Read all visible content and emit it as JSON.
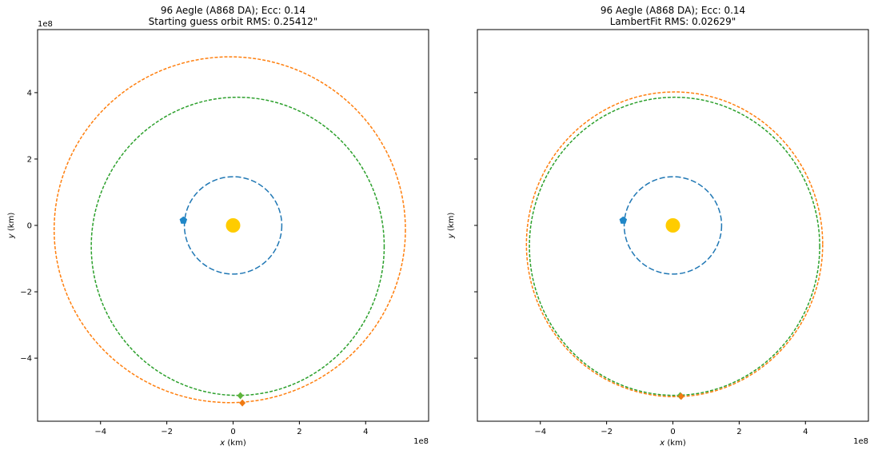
{
  "chart_data": [
    {
      "type": "scatter",
      "title": [
        "96 Aegle (A868 DA); Ecc: 0.14",
        "Starting guess orbit RMS: 0.25412\""
      ],
      "xlabel": "x (km)",
      "ylabel": "y (km)",
      "xlabel_var": "x",
      "ylabel_var": "y",
      "xlabel_unit": " (km)",
      "ylabel_unit": " (km)",
      "x_offset_label": "1e8",
      "y_offset_label": "1e8",
      "xlim": [
        -5.9,
        5.9
      ],
      "ylim": [
        -5.9,
        5.9
      ],
      "xticks": [
        -4,
        -2,
        0,
        2,
        4
      ],
      "yticks": [
        -4,
        -2,
        0,
        2,
        4
      ],
      "show_ytick_labels": true,
      "grid": false,
      "sun": {
        "x": 0,
        "y": 0,
        "color": "#ffcc00"
      },
      "orbits": [
        {
          "color": "#1f77b4",
          "cx": 0,
          "cy": 0,
          "rx": 1.47,
          "ry": 1.47,
          "dash": "long"
        },
        {
          "color": "#ff7f0e",
          "cx": -0.1,
          "cy": -0.13,
          "rx": 5.3,
          "ry": 5.22,
          "dash": "short"
        },
        {
          "color": "#2ca02c",
          "cx": 0.14,
          "cy": -0.63,
          "rx": 4.42,
          "ry": 4.5,
          "dash": "short"
        }
      ],
      "markers": [
        {
          "color": "#1f87c8",
          "x": -1.5,
          "y": 0.15,
          "shape": "pentagon"
        },
        {
          "color": "#5fb43c",
          "x": 0.22,
          "y": -5.13,
          "shape": "diamond"
        },
        {
          "color": "#f07a12",
          "x": 0.28,
          "y": -5.35,
          "shape": "diamond"
        }
      ]
    },
    {
      "type": "scatter",
      "title": [
        "96 Aegle (A868 DA); Ecc: 0.14",
        "LambertFit RMS: 0.02629\""
      ],
      "xlabel": "x (km)",
      "ylabel": "y (km)",
      "xlabel_var": "x",
      "ylabel_var": "y",
      "xlabel_unit": " (km)",
      "ylabel_unit": " (km)",
      "x_offset_label": "1e8",
      "y_offset_label": "",
      "xlim": [
        -5.9,
        5.9
      ],
      "ylim": [
        -5.9,
        5.9
      ],
      "xticks": [
        -4,
        -2,
        0,
        2,
        4
      ],
      "yticks": [
        -4,
        -2,
        0,
        2,
        4
      ],
      "show_ytick_labels": false,
      "grid": false,
      "sun": {
        "x": 0,
        "y": 0,
        "color": "#ffcc00"
      },
      "orbits": [
        {
          "color": "#1f77b4",
          "cx": 0,
          "cy": 0,
          "rx": 1.47,
          "ry": 1.47,
          "dash": "long"
        },
        {
          "color": "#ff7f0e",
          "cx": 0.05,
          "cy": -0.57,
          "rx": 4.47,
          "ry": 4.6,
          "dash": "short"
        },
        {
          "color": "#2ca02c",
          "cx": 0.05,
          "cy": -0.63,
          "rx": 4.38,
          "ry": 4.5,
          "dash": "short"
        }
      ],
      "markers": [
        {
          "color": "#1f87c8",
          "x": -1.5,
          "y": 0.15,
          "shape": "pentagon"
        },
        {
          "color": "#5fb43c",
          "x": 0.22,
          "y": -5.13,
          "shape": "diamond"
        },
        {
          "color": "#f07a12",
          "x": 0.25,
          "y": -5.15,
          "shape": "diamond"
        }
      ]
    }
  ]
}
